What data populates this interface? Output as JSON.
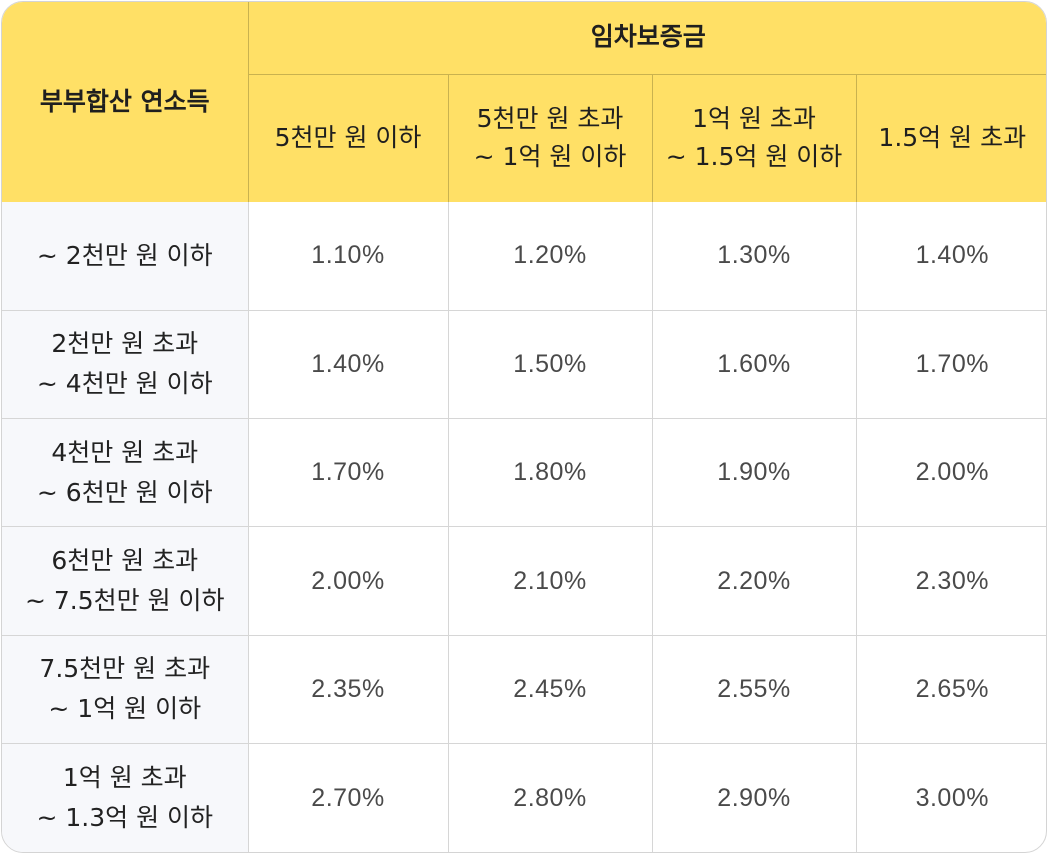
{
  "header": {
    "corner_label": "부부합산 연소득",
    "group_label": "임차보증금",
    "columns": [
      {
        "line1": "5천만 원 이하",
        "line2": ""
      },
      {
        "line1": "5천만 원 초과",
        "line2": "~ 1억 원 이하"
      },
      {
        "line1": "1억 원 초과",
        "line2": "~ 1.5억 원 이하"
      },
      {
        "line1": "1.5억 원 초과",
        "line2": ""
      }
    ]
  },
  "rows": [
    {
      "line1": "~ 2천만 원 이하",
      "line2": "",
      "values": [
        "1.10%",
        "1.20%",
        "1.30%",
        "1.40%"
      ]
    },
    {
      "line1": "2천만 원 초과",
      "line2": "~ 4천만 원 이하",
      "values": [
        "1.40%",
        "1.50%",
        "1.60%",
        "1.70%"
      ]
    },
    {
      "line1": "4천만 원 초과",
      "line2": "~ 6천만 원 이하",
      "values": [
        "1.70%",
        "1.80%",
        "1.90%",
        "2.00%"
      ]
    },
    {
      "line1": "6천만 원 초과",
      "line2": "~ 7.5천만 원 이하",
      "values": [
        "2.00%",
        "2.10%",
        "2.20%",
        "2.30%"
      ]
    },
    {
      "line1": "7.5천만 원 초과",
      "line2": "~ 1억 원 이하",
      "values": [
        "2.35%",
        "2.45%",
        "2.55%",
        "2.65%"
      ]
    },
    {
      "line1": "1억 원 초과",
      "line2": "~ 1.3억 원 이하",
      "values": [
        "2.70%",
        "2.80%",
        "2.90%",
        "3.00%"
      ]
    }
  ],
  "colors": {
    "header_bg": "#ffe066",
    "rowhead_bg": "#f7f8fb",
    "border": "#d6d6d6"
  }
}
